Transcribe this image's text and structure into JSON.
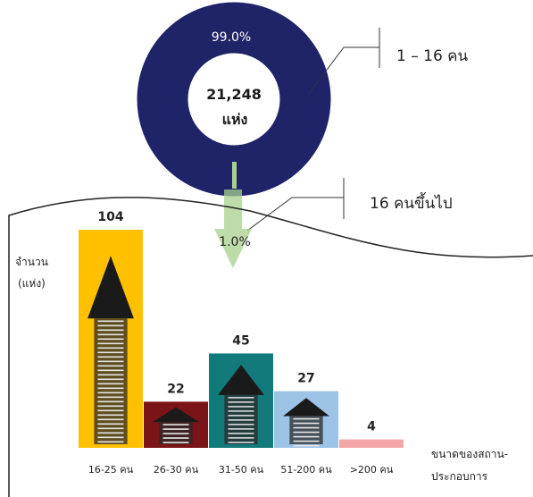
{
  "donut": {
    "big_pct": "99.0%",
    "center_value": "21,248",
    "center_unit": "แห่ง",
    "big_label": "1 – 16 คน",
    "small_label": "16 คนขึ้นไป",
    "small_pct": "1.0%",
    "big_color": "#1f2368",
    "small_color": "#a8d08d"
  },
  "chart_data": {
    "type": "bar",
    "title": "",
    "ylabel_lines": [
      "จำนวน",
      "(แห่ง)"
    ],
    "xlabel_lines": [
      "ขนาดของสถาน-",
      "ประกอบการ"
    ],
    "categories": [
      "16-25 คน",
      "26-30 คน",
      "31-50 คน",
      "51-200 คน",
      ">200 คน"
    ],
    "values": [
      104,
      22,
      45,
      27,
      4
    ],
    "value_labels": [
      "104",
      "22",
      "45",
      "27",
      "4"
    ],
    "colors": [
      "#ffc000",
      "#7b1416",
      "#127a7a",
      "#9dc3e6",
      "#f4a6a6"
    ],
    "ylim": [
      0,
      104
    ]
  }
}
